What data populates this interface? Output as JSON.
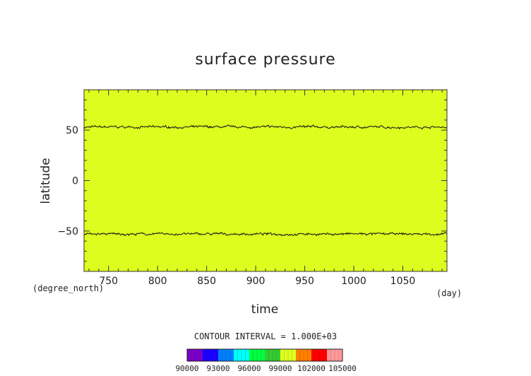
{
  "chart_data": {
    "type": "heatmap",
    "title": "surface pressure",
    "xlabel": "time",
    "ylabel": "latitude",
    "x_unit": "(day)",
    "y_unit": "(degree_north)",
    "xlim": [
      725,
      1095
    ],
    "ylim": [
      -90,
      90
    ],
    "x_ticks": [
      750,
      800,
      850,
      900,
      950,
      1000,
      1050
    ],
    "y_ticks": [
      50,
      0,
      -50
    ],
    "field_color": "#dfff20",
    "contour_lines": [
      {
        "name": "northern contour",
        "latitude_mean": 53,
        "noise": 1.6
      },
      {
        "name": "southern contour",
        "latitude_mean": -53,
        "noise": 1.6
      }
    ],
    "contour_interval_text": "CONTOUR INTERVAL = 1.000E+03",
    "colorbar": {
      "colors": [
        "#7a00c8",
        "#1a00ff",
        "#0080ff",
        "#00ffff",
        "#00ff40",
        "#33cc33",
        "#dfff20",
        "#ff8000",
        "#ff0000",
        "#ff9999"
      ],
      "labels": [
        "90000",
        "93000",
        "96000",
        "99000",
        "102000",
        "105000"
      ]
    }
  }
}
